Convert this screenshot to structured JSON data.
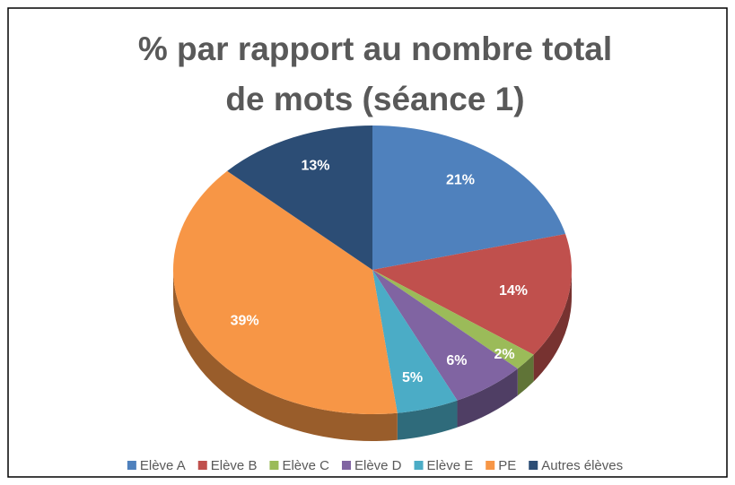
{
  "chart_data": {
    "type": "pie",
    "title": "% par rapport au nombre total de mots (séance 1)",
    "categories": [
      "Elève A",
      "Elève B",
      "Elève C",
      "Elève D",
      "Elève E",
      "PE",
      "Autres élèves"
    ],
    "values": [
      21,
      14,
      2,
      6,
      5,
      39,
      13
    ],
    "value_labels": [
      "21%",
      "14%",
      "2%",
      "6%",
      "5%",
      "39%",
      "13%"
    ],
    "colors": [
      "#4f81bd",
      "#c0504d",
      "#9bbb59",
      "#8064a2",
      "#4bacc6",
      "#f79646",
      "#2c4d75"
    ],
    "legend": "bottom"
  }
}
